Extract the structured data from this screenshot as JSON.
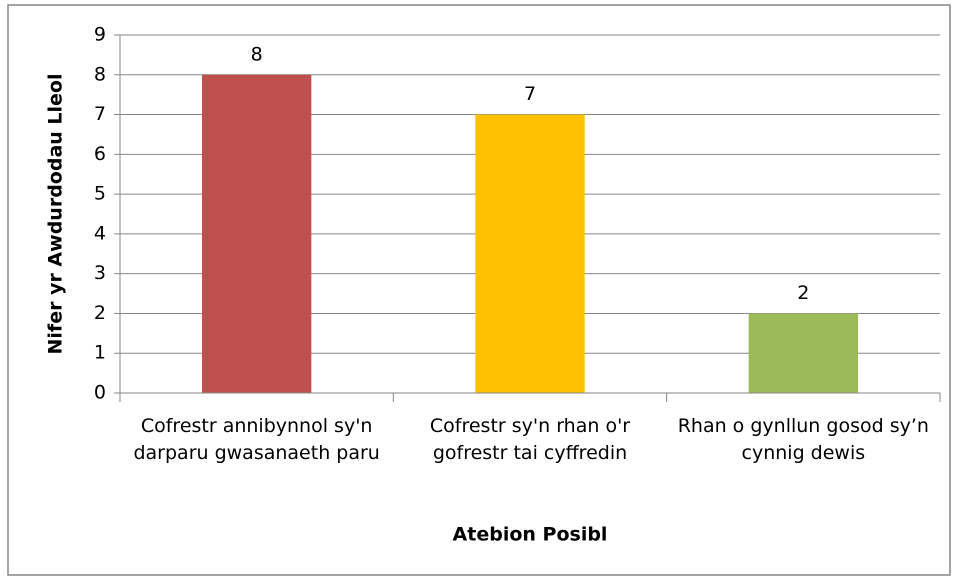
{
  "chart_data": {
    "type": "bar",
    "categories": [
      "Cofrestr annibynnol sy'n darparu gwasanaeth paru",
      "Cofrestr sy'n rhan o'r gofrestr tai cyffredin",
      "Rhan o gynllun gosod sy’n cynnig dewis"
    ],
    "values": [
      8,
      7,
      2
    ],
    "colors": [
      "#c0504d",
      "#ffc000",
      "#9bbb59"
    ],
    "ylim": [
      0,
      9
    ],
    "yticks": [
      0,
      1,
      2,
      3,
      4,
      5,
      6,
      7,
      8,
      9
    ],
    "grid": true,
    "y_label": "Nifer yr Awdurdodau Lleol",
    "x_label": "Atebion Posibl"
  }
}
